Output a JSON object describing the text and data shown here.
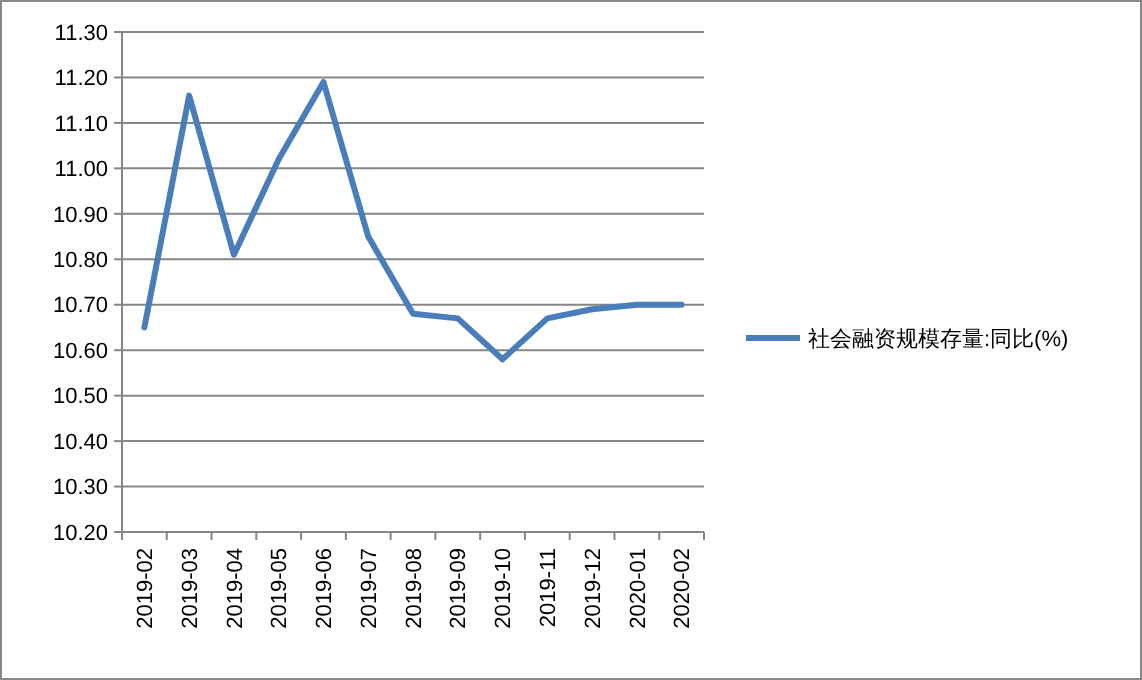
{
  "chart_data": {
    "type": "line",
    "categories": [
      "2019-02",
      "2019-03",
      "2019-04",
      "2019-05",
      "2019-06",
      "2019-07",
      "2019-08",
      "2019-09",
      "2019-10",
      "2019-11",
      "2019-12",
      "2020-01",
      "2020-02"
    ],
    "series": [
      {
        "name": "社会融资规模存量:同比(%)",
        "color": "#4a7ebb",
        "values": [
          10.65,
          11.16,
          10.81,
          11.02,
          11.19,
          10.85,
          10.68,
          10.67,
          10.58,
          10.67,
          10.69,
          10.7,
          10.7
        ]
      }
    ],
    "ylim": [
      10.2,
      11.3
    ],
    "yticks": [
      {
        "value": 10.2,
        "label": "10.20"
      },
      {
        "value": 10.3,
        "label": "10.30"
      },
      {
        "value": 10.4,
        "label": "10.40"
      },
      {
        "value": 10.5,
        "label": "10.50"
      },
      {
        "value": 10.6,
        "label": "10.60"
      },
      {
        "value": 10.7,
        "label": "10.70"
      },
      {
        "value": 10.8,
        "label": "10.80"
      },
      {
        "value": 10.9,
        "label": "10.90"
      },
      {
        "value": 11.0,
        "label": "11.00"
      },
      {
        "value": 11.1,
        "label": "11.10"
      },
      {
        "value": 11.2,
        "label": "11.20"
      },
      {
        "value": 11.3,
        "label": "11.30"
      }
    ],
    "grid": "y",
    "legend": "right",
    "marker": "none",
    "line_style": "solid"
  }
}
